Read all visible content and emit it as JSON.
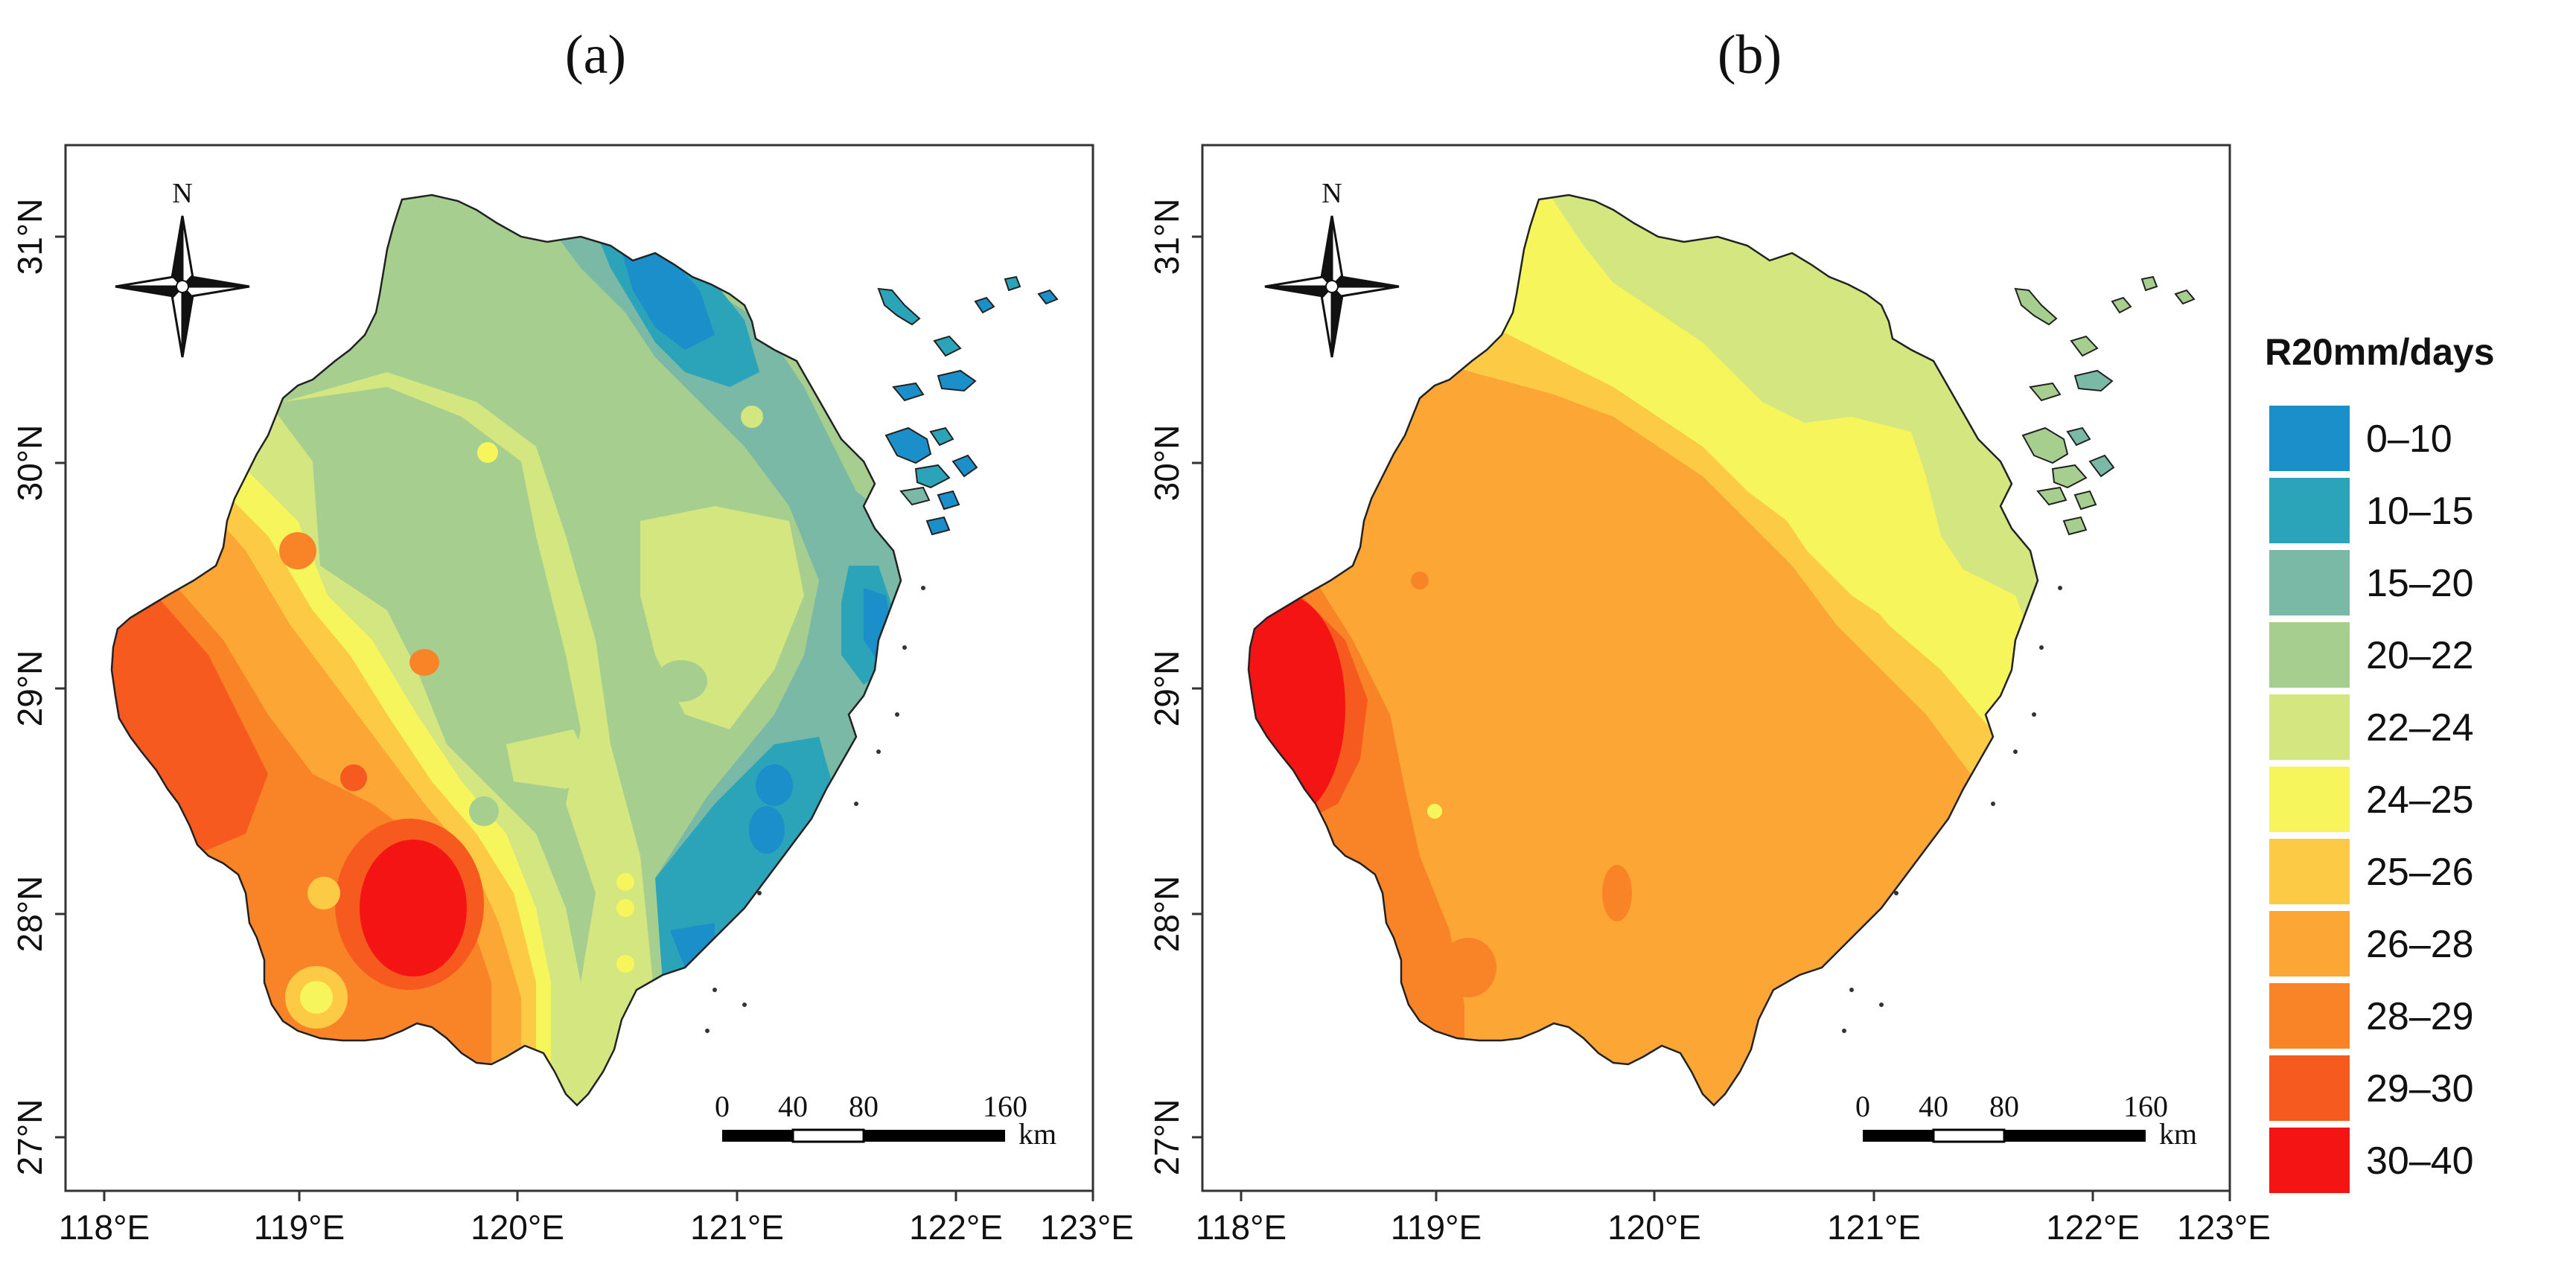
{
  "panels": [
    {
      "id": "a",
      "label": "(a)",
      "x_ticks": [
        "118°E",
        "119°E",
        "120°E",
        "121°E",
        "122°E",
        "123°E"
      ],
      "y_ticks": [
        "31°N",
        "30°N",
        "29°N",
        "28°N",
        "27°N"
      ],
      "north_label": "N",
      "scale_labels": [
        "0",
        "40",
        "80",
        "160"
      ],
      "scale_unit": "km"
    },
    {
      "id": "b",
      "label": "(b)",
      "x_ticks": [
        "118°E",
        "119°E",
        "120°E",
        "121°E",
        "122°E",
        "123°E"
      ],
      "y_ticks": [
        "31°N",
        "30°N",
        "29°N",
        "28°N",
        "27°N"
      ],
      "north_label": "N",
      "scale_labels": [
        "0",
        "40",
        "80",
        "160"
      ],
      "scale_unit": "km"
    }
  ],
  "legend": {
    "title": "R20mm/days",
    "classes": [
      {
        "label": "0–10",
        "color": "#1a8fc9"
      },
      {
        "label": "10–15",
        "color": "#2ba3b8"
      },
      {
        "label": "15–20",
        "color": "#79b9a6"
      },
      {
        "label": "20–22",
        "color": "#a6cf8f"
      },
      {
        "label": "22–24",
        "color": "#d3e680"
      },
      {
        "label": "24–25",
        "color": "#f6f55b"
      },
      {
        "label": "25–26",
        "color": "#fdca45"
      },
      {
        "label": "26–28",
        "color": "#fba635"
      },
      {
        "label": "28–29",
        "color": "#f98428"
      },
      {
        "label": "29–30",
        "color": "#f65a1e"
      },
      {
        "label": "30–40",
        "color": "#f51414"
      }
    ]
  }
}
